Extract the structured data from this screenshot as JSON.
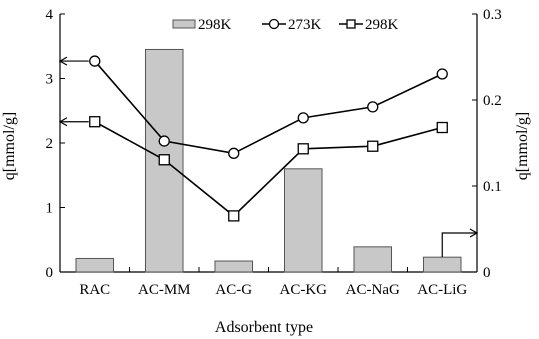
{
  "chart_data": {
    "type": "bar",
    "categories": [
      "RAC",
      "AC-MM",
      "AC-G",
      "AC-KG",
      "AC-NaG",
      "AC-LiG"
    ],
    "xlabel": "Adsorbent type",
    "ylabel_left": "q[mmol/g]",
    "ylabel_right": "q[mmol/g]",
    "ylim_left": [
      0,
      4
    ],
    "ylim_right": [
      0,
      0.3
    ],
    "yticks_left": [
      "0",
      "1",
      "2",
      "3",
      "4"
    ],
    "yticks_right": [
      "0",
      "0.1",
      "0.2",
      "0.3"
    ],
    "grid": false,
    "legend_position": "top",
    "bar_series": {
      "name": "298K",
      "axis": "left",
      "values": [
        0.21,
        3.45,
        0.17,
        1.6,
        0.39,
        0.23
      ],
      "fill": "#c8c8c8"
    },
    "line_series": [
      {
        "name": "273K",
        "axis": "left",
        "marker": "circle",
        "values": [
          3.27,
          2.03,
          1.84,
          2.39,
          2.56,
          3.07
        ]
      },
      {
        "name": "298K",
        "axis": "left",
        "marker": "square",
        "values": [
          2.33,
          1.74,
          0.87,
          1.91,
          1.95,
          2.24
        ]
      }
    ],
    "colors": {
      "line": "#000000",
      "bar_stroke": "#555555",
      "marker_fill": "#ffffff"
    }
  }
}
